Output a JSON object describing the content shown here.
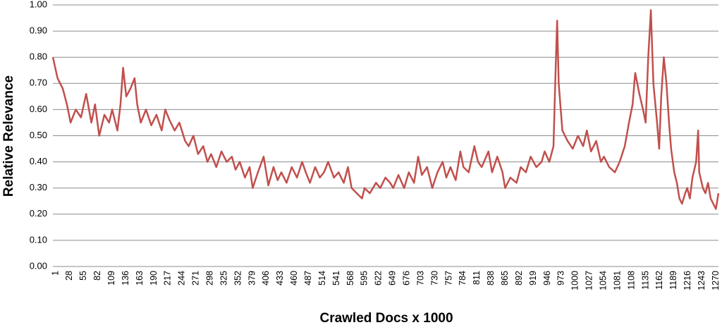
{
  "chart_data": {
    "type": "line",
    "title": "",
    "xlabel": "Crawled Docs x 1000",
    "ylabel": "Relative Relevance",
    "ylim": [
      0,
      1
    ],
    "yticks": [
      "0.00",
      "0.10",
      "0.20",
      "0.30",
      "0.40",
      "0.50",
      "0.60",
      "0.70",
      "0.80",
      "0.90",
      "1.00"
    ],
    "x_tick_labels": [
      "1",
      "28",
      "55",
      "82",
      "109",
      "136",
      "163",
      "190",
      "217",
      "244",
      "271",
      "298",
      "325",
      "352",
      "379",
      "406",
      "433",
      "460",
      "487",
      "514",
      "541",
      "568",
      "595",
      "622",
      "649",
      "676",
      "703",
      "730",
      "757",
      "784",
      "811",
      "838",
      "865",
      "892",
      "919",
      "946",
      "973",
      "1000",
      "1027",
      "1054",
      "1081",
      "1108",
      "1135",
      "1162",
      "1189",
      "1216",
      "1243",
      "1270"
    ],
    "x_range": [
      1,
      1280
    ],
    "grid": true,
    "legend": "none",
    "series": [
      {
        "color": "#c0504d",
        "x": [
          1,
          10,
          20,
          28,
          35,
          45,
          55,
          65,
          75,
          82,
          90,
          100,
          109,
          115,
          125,
          131,
          136,
          142,
          150,
          158,
          163,
          170,
          180,
          190,
          200,
          210,
          217,
          225,
          235,
          244,
          255,
          262,
          271,
          280,
          290,
          298,
          305,
          315,
          325,
          335,
          345,
          352,
          360,
          370,
          379,
          385,
          395,
          406,
          415,
          425,
          433,
          440,
          450,
          460,
          470,
          480,
          487,
          495,
          505,
          514,
          522,
          530,
          541,
          550,
          560,
          568,
          575,
          585,
          595,
          600,
          610,
          622,
          630,
          640,
          649,
          655,
          665,
          676,
          685,
          695,
          703,
          710,
          720,
          730,
          740,
          750,
          757,
          765,
          775,
          784,
          790,
          800,
          811,
          818,
          825,
          838,
          845,
          855,
          865,
          870,
          880,
          892,
          900,
          910,
          919,
          930,
          940,
          946,
          955,
          963,
          967,
          970,
          973,
          980,
          990,
          1000,
          1010,
          1020,
          1027,
          1035,
          1045,
          1054,
          1060,
          1070,
          1081,
          1090,
          1100,
          1108,
          1115,
          1120,
          1128,
          1135,
          1140,
          1145,
          1150,
          1155,
          1162,
          1166,
          1170,
          1175,
          1180,
          1185,
          1189,
          1195,
          1200,
          1205,
          1210,
          1216,
          1220,
          1225,
          1230,
          1237,
          1241,
          1243,
          1250,
          1255,
          1260,
          1265,
          1270,
          1275,
          1280
        ],
        "y": [
          0.8,
          0.72,
          0.68,
          0.62,
          0.55,
          0.6,
          0.57,
          0.66,
          0.55,
          0.62,
          0.5,
          0.58,
          0.55,
          0.6,
          0.52,
          0.62,
          0.76,
          0.65,
          0.68,
          0.72,
          0.62,
          0.55,
          0.6,
          0.54,
          0.58,
          0.52,
          0.6,
          0.56,
          0.52,
          0.55,
          0.48,
          0.46,
          0.5,
          0.43,
          0.46,
          0.4,
          0.43,
          0.38,
          0.44,
          0.4,
          0.42,
          0.37,
          0.4,
          0.34,
          0.38,
          0.3,
          0.36,
          0.42,
          0.31,
          0.38,
          0.33,
          0.36,
          0.32,
          0.38,
          0.34,
          0.4,
          0.36,
          0.32,
          0.38,
          0.34,
          0.36,
          0.4,
          0.34,
          0.36,
          0.32,
          0.38,
          0.3,
          0.28,
          0.26,
          0.3,
          0.28,
          0.32,
          0.3,
          0.34,
          0.32,
          0.3,
          0.35,
          0.3,
          0.36,
          0.32,
          0.42,
          0.35,
          0.38,
          0.3,
          0.36,
          0.4,
          0.34,
          0.38,
          0.33,
          0.44,
          0.38,
          0.36,
          0.46,
          0.4,
          0.38,
          0.44,
          0.36,
          0.42,
          0.36,
          0.3,
          0.34,
          0.32,
          0.38,
          0.36,
          0.42,
          0.38,
          0.4,
          0.44,
          0.4,
          0.46,
          0.75,
          0.94,
          0.7,
          0.52,
          0.48,
          0.45,
          0.5,
          0.46,
          0.52,
          0.44,
          0.48,
          0.4,
          0.42,
          0.38,
          0.36,
          0.4,
          0.46,
          0.55,
          0.62,
          0.74,
          0.66,
          0.6,
          0.55,
          0.8,
          0.98,
          0.7,
          0.55,
          0.45,
          0.65,
          0.8,
          0.7,
          0.55,
          0.45,
          0.36,
          0.32,
          0.26,
          0.24,
          0.28,
          0.3,
          0.26,
          0.34,
          0.4,
          0.52,
          0.36,
          0.3,
          0.28,
          0.32,
          0.26,
          0.24,
          0.22,
          0.28
        ]
      }
    ]
  }
}
